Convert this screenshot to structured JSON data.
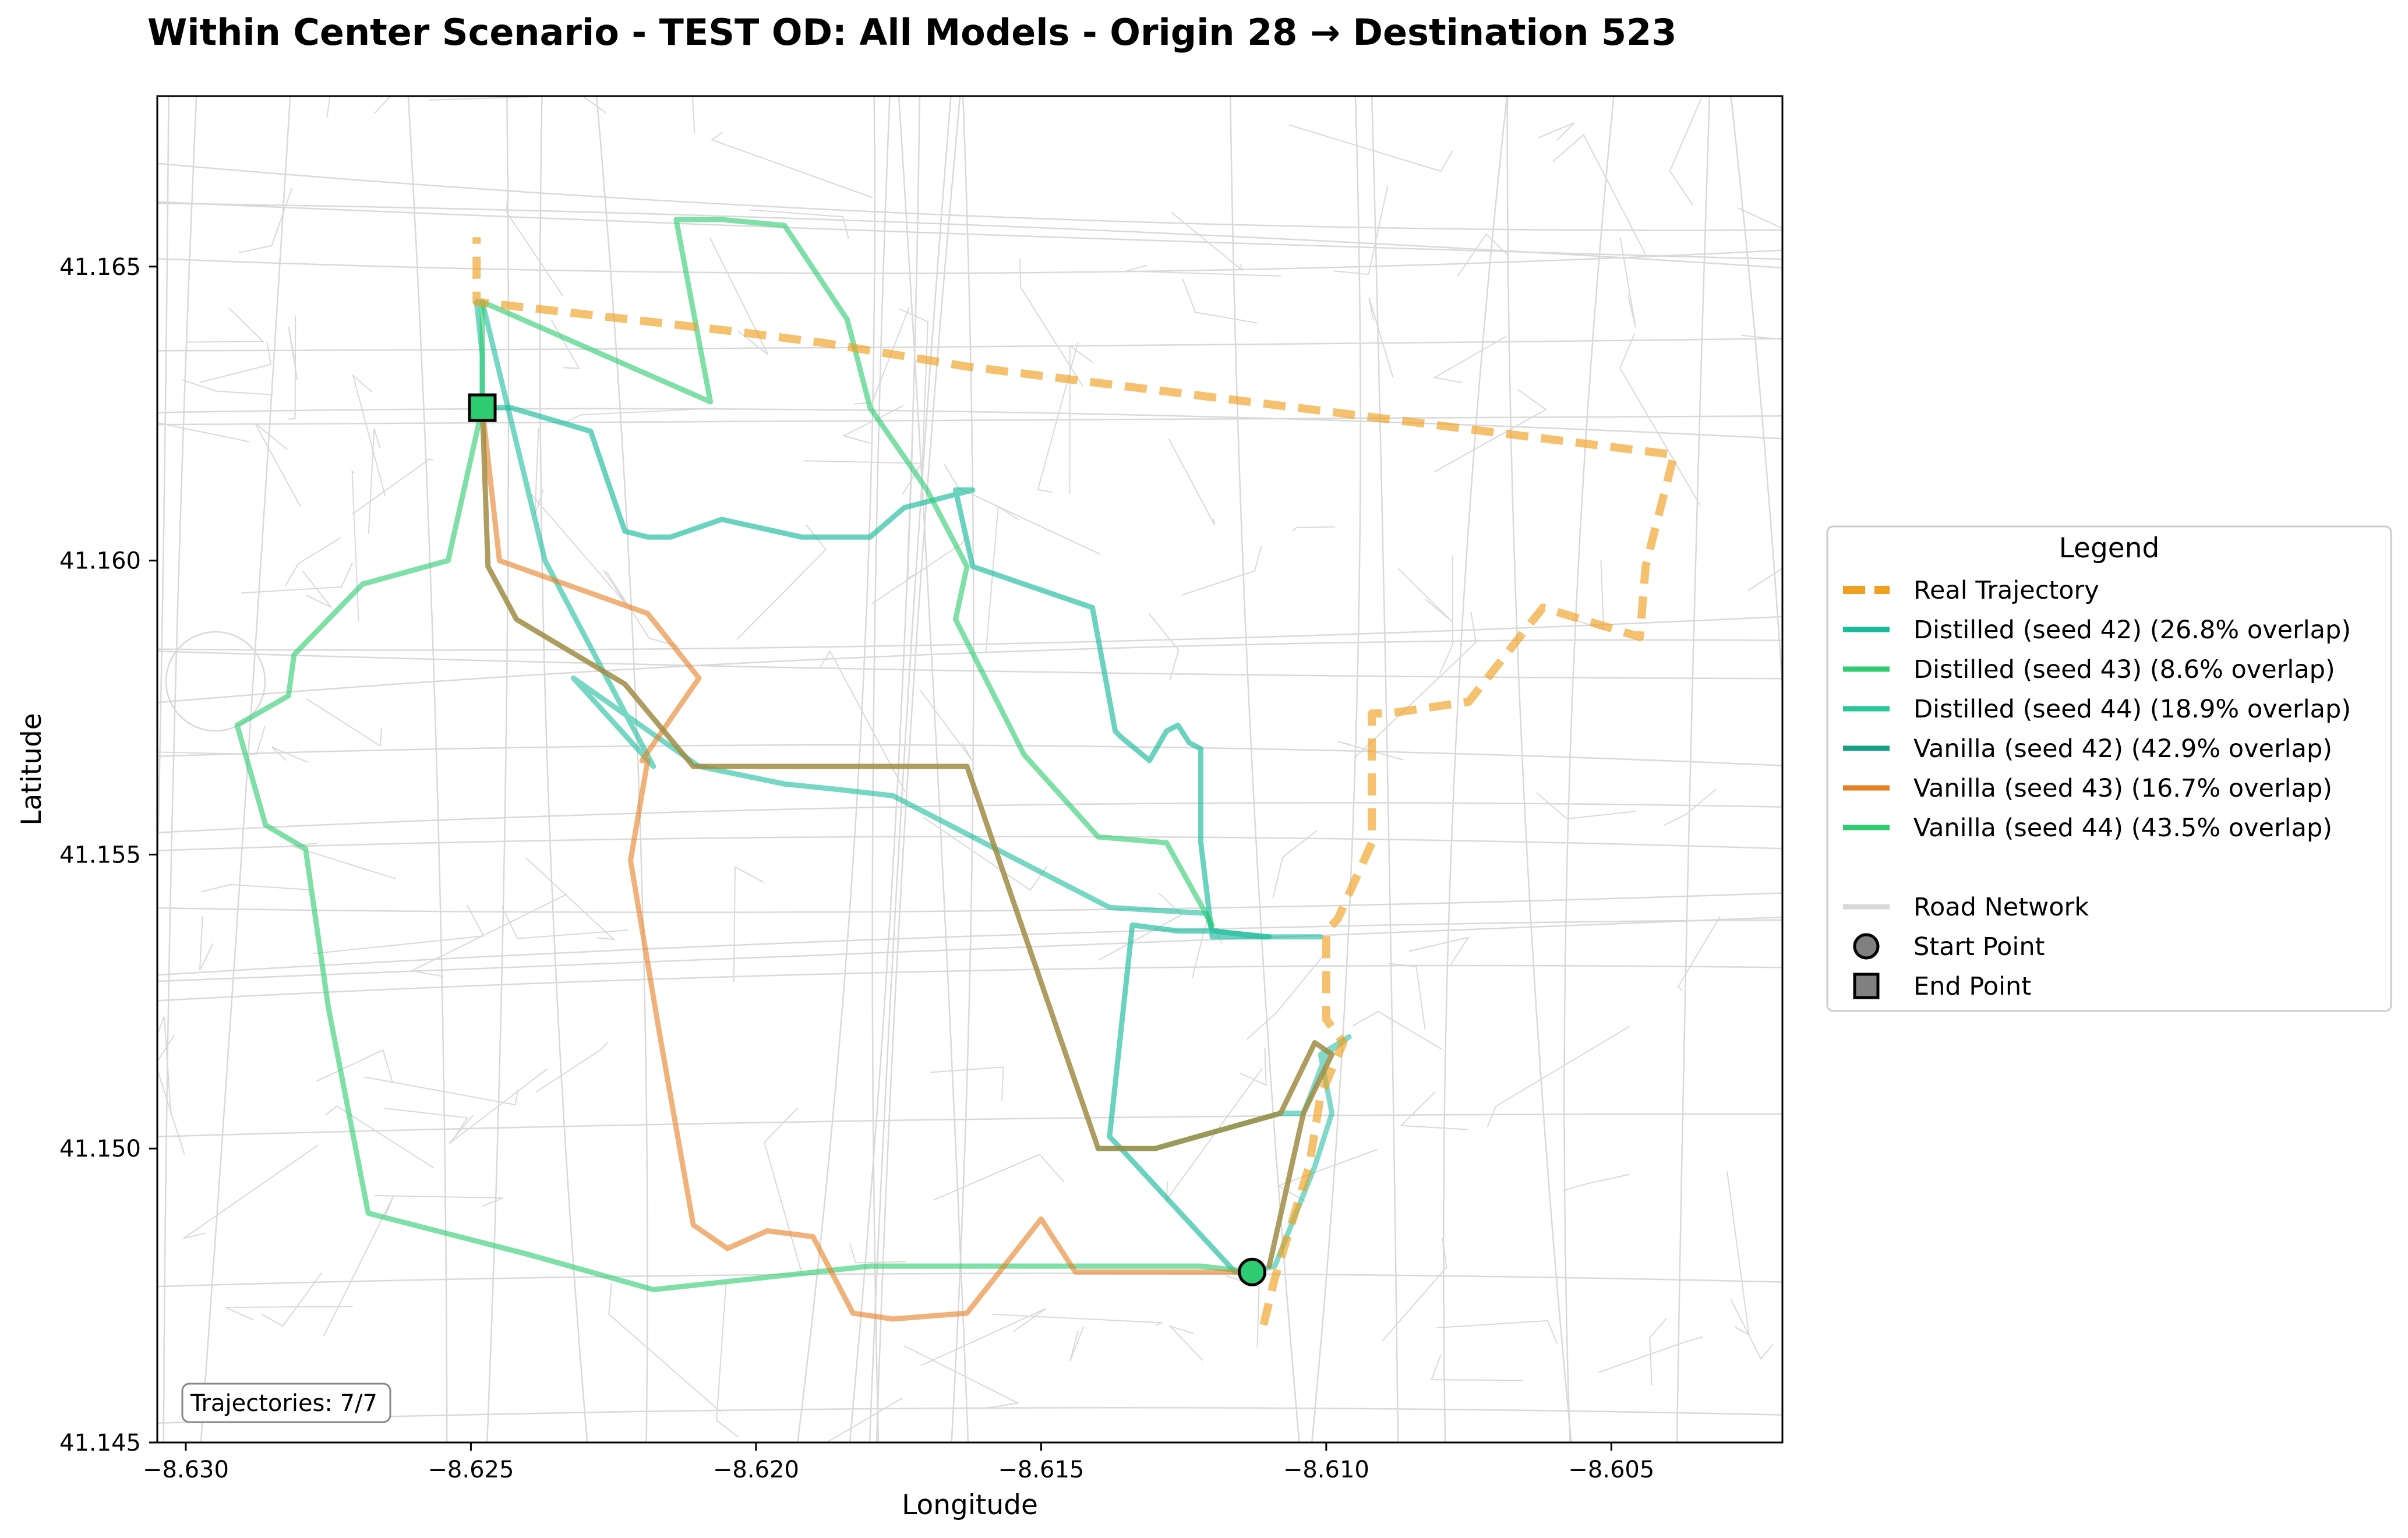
{
  "chart_data": {
    "type": "line",
    "title": "Within Center Scenario - TEST OD: All Models - Origin 28 → Destination 523",
    "xlabel": "Longitude",
    "ylabel": "Latitude",
    "xlim": [
      -8.6305,
      -8.602
    ],
    "ylim": [
      41.145,
      41.1679
    ],
    "xticks": [
      -8.63,
      -8.625,
      -8.62,
      -8.615,
      -8.61,
      -8.605
    ],
    "xtick_labels": [
      "−8.630",
      "−8.625",
      "−8.620",
      "−8.615",
      "−8.610",
      "−8.605"
    ],
    "yticks": [
      41.145,
      41.15,
      41.155,
      41.16,
      41.165
    ],
    "ytick_labels": [
      "41.145",
      "41.150",
      "41.155",
      "41.160",
      "41.165"
    ],
    "grid": false,
    "legend": {
      "title": "Legend",
      "placement": "right, outside plot",
      "entries": [
        {
          "label": "Real Trajectory",
          "kind": "dashed-line",
          "color": "#f0a020"
        },
        {
          "label": "Distilled (seed 42) (26.8% overlap)",
          "kind": "line",
          "color": "#1abc9c"
        },
        {
          "label": "Distilled (seed 43) (8.6% overlap)",
          "kind": "line",
          "color": "#2ecc71"
        },
        {
          "label": "Distilled (seed 44) (18.9% overlap)",
          "kind": "line",
          "color": "#27c69c"
        },
        {
          "label": "Vanilla (seed 42) (42.9% overlap)",
          "kind": "line",
          "color": "#16a085"
        },
        {
          "label": "Vanilla (seed 43) (16.7% overlap)",
          "kind": "line",
          "color": "#e67e22"
        },
        {
          "label": "Vanilla (seed 44) (43.5% overlap)",
          "kind": "line",
          "color": "#2ecc71"
        },
        {
          "label": "",
          "kind": "spacer",
          "color": "#ffffff"
        },
        {
          "label": "Road Network",
          "kind": "line",
          "color": "#d8d8d8"
        },
        {
          "label": "Start Point",
          "kind": "circle",
          "color": "#808080"
        },
        {
          "label": "End Point",
          "kind": "square",
          "color": "#808080"
        }
      ]
    },
    "annotation": "Trajectories: 7/7",
    "start_point": {
      "x": -8.6113,
      "y": 41.1479,
      "color": "#2ecc71"
    },
    "end_point": {
      "x": -8.6248,
      "y": 41.1626,
      "color": "#2ecc71"
    },
    "series": [
      {
        "name": "Distilled (seed 44) (18.9% overlap)",
        "color": "#1abc9c",
        "opacity": 0.65,
        "width": 9,
        "dashed": false,
        "x": [
          -8.6113,
          -8.6116,
          -8.6136,
          -8.6138,
          -8.6134,
          -8.6126,
          -8.6119,
          -8.612,
          -8.611,
          -8.6119,
          -8.612,
          -8.6122,
          -8.6122,
          -8.6124,
          -8.6126,
          -8.6128,
          -8.6131,
          -8.6136,
          -8.6137,
          -8.6141,
          -8.6162,
          -8.6165,
          -8.6162,
          -8.6174,
          -8.618,
          -8.6192,
          -8.6206,
          -8.6215,
          -8.6219,
          -8.6223,
          -8.6229,
          -8.6243,
          -8.6248,
          -8.6248,
          -8.6248
        ],
        "y": [
          41.1479,
          41.1479,
          41.15,
          41.1502,
          41.1538,
          41.1537,
          41.1537,
          41.1537,
          41.1536,
          41.1536,
          41.1536,
          41.1552,
          41.1568,
          41.1569,
          41.1572,
          41.1571,
          41.1566,
          41.157,
          41.1571,
          41.1592,
          41.1599,
          41.1612,
          41.1612,
          41.1609,
          41.1604,
          41.1604,
          41.1607,
          41.1604,
          41.1604,
          41.1605,
          41.1622,
          41.1626,
          41.1626,
          41.1626,
          41.1626
        ]
      },
      {
        "name": "Distilled (seed 42) (26.8% overlap)",
        "color": "#1abc9c",
        "opacity": 0.6,
        "width": 9,
        "dashed": false,
        "x": [
          -8.6248,
          -8.6248,
          -8.6249,
          -8.6248,
          -8.6237,
          -8.6218,
          -8.6232,
          -8.621,
          -8.6195,
          -8.6185,
          -8.6176,
          -8.6138,
          -8.6121,
          -8.612,
          -8.6111,
          -8.6101
        ],
        "y": [
          41.1626,
          41.1635,
          41.1644,
          41.1644,
          41.16,
          41.1565,
          41.158,
          41.1565,
          41.1562,
          41.1561,
          41.156,
          41.1541,
          41.154,
          41.1537,
          41.1536,
          41.1536
        ]
      },
      {
        "name": "Distilled (seed 43) (8.6% overlap)",
        "color": "#2ecc71",
        "opacity": 0.62,
        "width": 9,
        "dashed": false,
        "x": [
          -8.6248,
          -8.6248,
          -8.6208,
          -8.6214,
          -8.6206,
          -8.6195,
          -8.6184,
          -8.618,
          -8.617,
          -8.6163,
          -8.6165,
          -8.6153,
          -8.614,
          -8.6128,
          -8.612
        ],
        "y": [
          41.1626,
          41.1644,
          41.1627,
          41.1658,
          41.1658,
          41.1657,
          41.1641,
          41.1626,
          41.1612,
          41.1599,
          41.159,
          41.1567,
          41.1553,
          41.1552,
          41.1538
        ]
      },
      {
        "name": "Vanilla (seed 44) (43.5% overlap)",
        "color": "#2ecc71",
        "opacity": 0.62,
        "width": 9,
        "dashed": false,
        "x": [
          -8.6113,
          -8.6122,
          -8.615,
          -8.618,
          -8.6218,
          -8.624,
          -8.6268,
          -8.6275,
          -8.6279,
          -8.6286,
          -8.6291,
          -8.6282,
          -8.6281,
          -8.6269,
          -8.6254,
          -8.6248
        ],
        "y": [
          41.1479,
          41.148,
          41.148,
          41.148,
          41.1476,
          41.1482,
          41.1489,
          41.1524,
          41.1551,
          41.1555,
          41.1572,
          41.1577,
          41.1584,
          41.1596,
          41.16,
          41.1626
        ]
      },
      {
        "name": "Vanilla (seed 43) (16.7% overlap)",
        "color": "#e67e22",
        "opacity": 0.6,
        "width": 9,
        "dashed": false,
        "x": [
          -8.6113,
          -8.6144,
          -8.615,
          -8.6163,
          -8.6176,
          -8.6183,
          -8.619,
          -8.6198,
          -8.6205,
          -8.6211,
          -8.6217,
          -8.6222,
          -8.6219,
          -8.622,
          -8.621,
          -8.6219,
          -8.6245,
          -8.6248
        ],
        "y": [
          41.1479,
          41.1479,
          41.1488,
          41.1472,
          41.1471,
          41.1472,
          41.1485,
          41.1486,
          41.1483,
          41.1487,
          41.152,
          41.1549,
          41.1566,
          41.1566,
          41.158,
          41.1591,
          41.16,
          41.1626
        ]
      },
      {
        "name": "Vanilla (seed 42) (42.9% overlap)",
        "color": "#1abc9c",
        "opacity": 0.55,
        "width": 9,
        "dashed": false,
        "x": [
          -8.6113,
          -8.6109,
          -8.6102,
          -8.6099,
          -8.6101,
          -8.6096,
          -8.61,
          -8.6104,
          -8.6108,
          -8.613,
          -8.614,
          -8.6139
        ],
        "y": [
          41.1479,
          41.148,
          41.1497,
          41.1506,
          41.1516,
          41.1519,
          41.1516,
          41.1506,
          41.1506,
          41.15,
          41.15,
          41.15
        ]
      },
      {
        "name": "Real Trajectory",
        "color": "#f0a020",
        "opacity": 0.65,
        "width": 14,
        "dashed": true,
        "x": [
          -8.6111,
          -8.6109,
          -8.6103,
          -8.6101,
          -8.6097,
          -8.61,
          -8.61,
          -8.6098,
          -8.6092,
          -8.6092,
          -8.6089,
          -8.6075,
          -8.6062,
          -8.6045,
          -8.6044,
          -8.6039,
          -8.6163,
          -8.6188,
          -8.6204,
          -8.6249,
          -8.6249
        ],
        "y": [
          41.147,
          41.1478,
          41.1497,
          41.1509,
          41.1518,
          41.1522,
          41.1537,
          41.1539,
          41.1552,
          41.1574,
          41.1574,
          41.1576,
          41.1592,
          41.1587,
          41.1599,
          41.1618,
          41.1633,
          41.1637,
          41.1639,
          41.1644,
          41.1655
        ]
      }
    ],
    "olive_overlay": {
      "color": "#a08c44",
      "opacity": 0.85,
      "width": 9,
      "x": [
        -8.6248,
        -8.6247,
        -8.6242,
        -8.6223,
        -8.6211,
        -8.6194,
        -8.6187,
        -8.6176,
        -8.6163,
        -8.614,
        -8.613,
        -8.6108,
        -8.6102,
        -8.6099,
        -8.6104,
        -8.611
      ],
      "y": [
        41.1626,
        41.1599,
        41.159,
        41.1579,
        41.1565,
        41.1565,
        41.1565,
        41.1565,
        41.1565,
        41.15,
        41.15,
        41.1506,
        41.1518,
        41.1516,
        41.1506,
        41.148
      ]
    }
  }
}
